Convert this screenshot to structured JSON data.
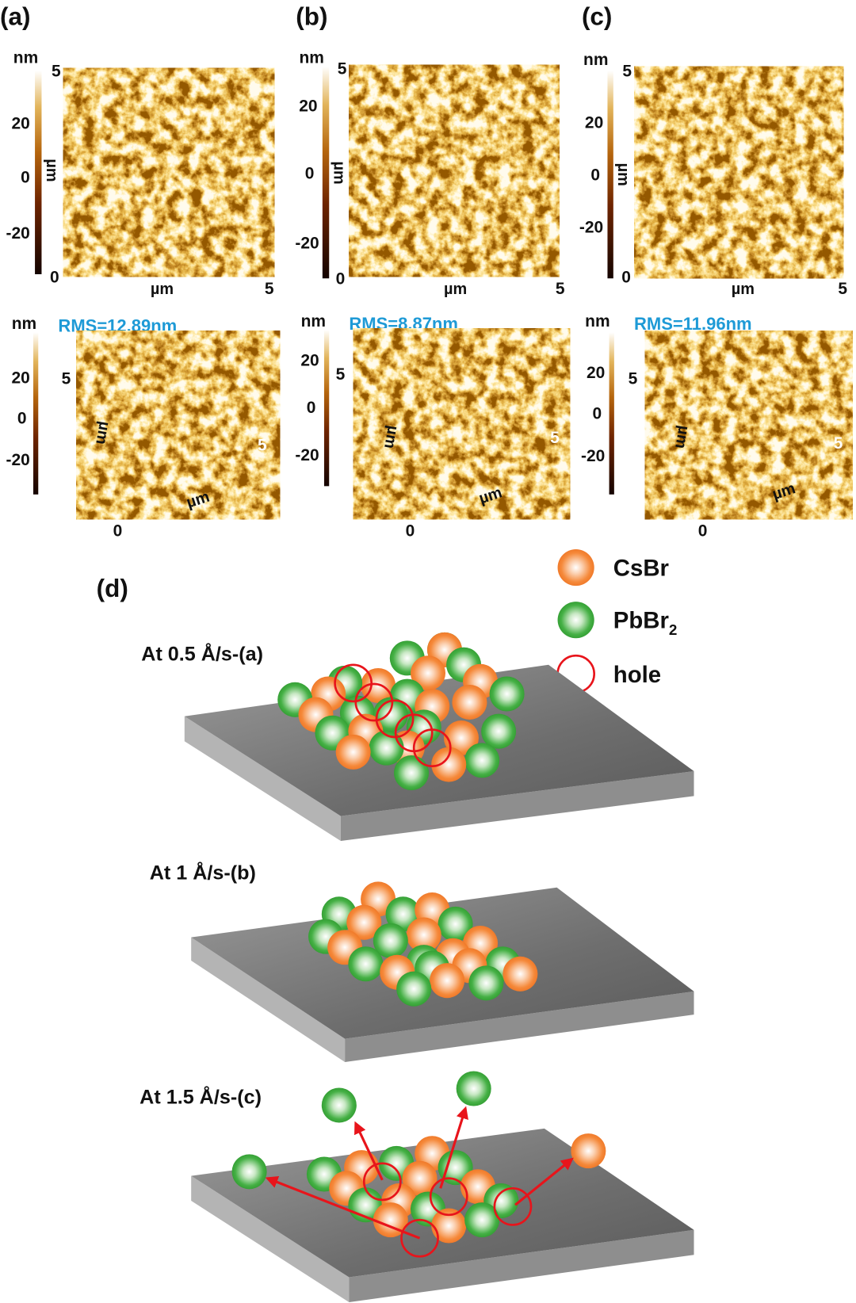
{
  "figure": {
    "panels": [
      {
        "label": "(a)",
        "colorbar_unit": "nm",
        "colorbar_ticks": [
          "20",
          "0",
          "-20"
        ],
        "axis_unit": "µm",
        "axis_max": "5",
        "axis_min": "0",
        "rms": "RMS=12.89nm"
      },
      {
        "label": "(b)",
        "colorbar_unit": "nm",
        "colorbar_ticks": [
          "20",
          "0",
          "-20"
        ],
        "axis_unit": "µm",
        "axis_max": "5",
        "axis_min": "0",
        "rms": "RMS=8.87nm"
      },
      {
        "label": "(c)",
        "colorbar_unit": "nm",
        "colorbar_ticks": [
          "20",
          "0",
          "-20"
        ],
        "axis_unit": "µm",
        "axis_max": "5",
        "axis_min": "0",
        "rms": "RMS=11.96nm"
      }
    ],
    "schematic": {
      "label": "(d)",
      "legend": {
        "csbr": "CsBr",
        "pbbr2_main": "PbBr",
        "pbbr2_sub": "2",
        "hole": "hole"
      },
      "conditions": [
        "At  0.5 Å/s-(a)",
        "At  1 Å/s-(b)",
        "At  1.5 Å/s-(c)"
      ]
    },
    "colors": {
      "rms_text": "#1e9ad6",
      "csbr": "#f5893a",
      "pbbr2": "#3fae3f",
      "hole": "#e8141b",
      "substrate": "#8c8c8c"
    }
  }
}
